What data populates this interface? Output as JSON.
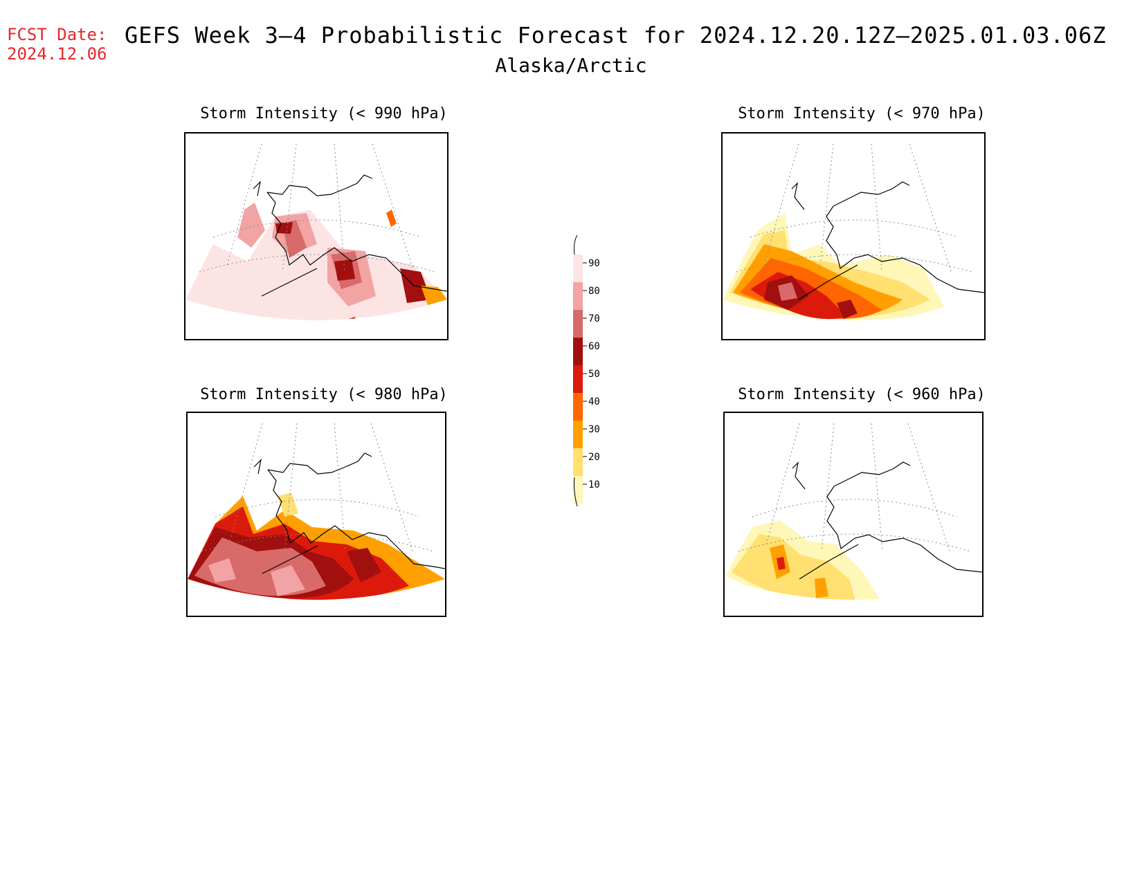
{
  "header": {
    "fcst_label": "FCST Date:",
    "fcst_date": "2024.12.06",
    "title": "GEFS Week 3–4 Probabilistic Forecast for 2024.12.20.12Z–2025.01.03.06Z",
    "region": "Alaska/Arctic"
  },
  "panels": [
    {
      "id": "p990",
      "title": "Storm Intensity (< 990 hPa)"
    },
    {
      "id": "p970",
      "title": "Storm Intensity (< 970 hPa)"
    },
    {
      "id": "p980",
      "title": "Storm Intensity (< 980 hPa)"
    },
    {
      "id": "p960",
      "title": "Storm Intensity (< 960 hPa)"
    }
  ],
  "legend": {
    "levels": [
      "90",
      "80",
      "70",
      "60",
      "50",
      "40",
      "30",
      "20",
      "10"
    ],
    "colors": [
      "#fde4e4",
      "#f2a3a3",
      "#d86a6a",
      "#a20f0f",
      "#dc1a0c",
      "#ff6600",
      "#ffa000",
      "#ffe070",
      "#fff7b8"
    ]
  }
}
